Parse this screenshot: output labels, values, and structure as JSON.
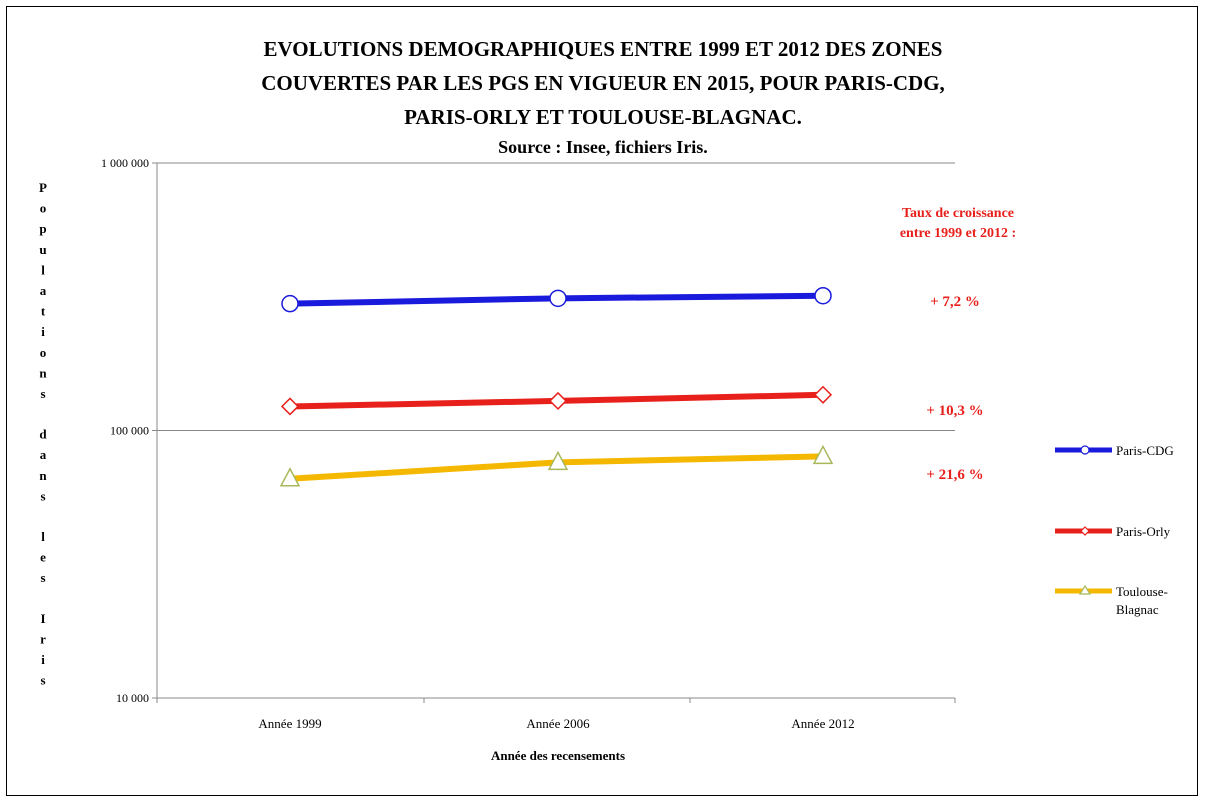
{
  "chart_data": {
    "type": "line",
    "title": "EVOLUTIONS DEMOGRAPHIQUES ENTRE 1999 ET 2012 DES ZONES COUVERTES PAR LES PGS EN VIGUEUR EN 2015, POUR PARIS-CDG, PARIS-ORLY ET TOULOUSE-BLAGNAC.",
    "title_lines": [
      "EVOLUTIONS DEMOGRAPHIQUES ENTRE 1999 ET 2012 DES ZONES",
      "COUVERTES PAR LES PGS EN VIGUEUR EN 2015, POUR PARIS-CDG,",
      "PARIS-ORLY ET TOULOUSE-BLAGNAC."
    ],
    "subtitle": "Source : Insee, fichiers Iris.",
    "xlabel": "Année des recensements",
    "ylabel": "Populations dans les Iris",
    "yscale": "log",
    "ylim": [
      10000,
      1000000
    ],
    "yticks": [
      1000000,
      100000,
      10000
    ],
    "ytick_labels": [
      "1 000 000",
      "100 000",
      "10 000"
    ],
    "grid": "horizontal",
    "legend_position": "right",
    "categories": [
      "Année 1999",
      "Année 2006",
      "Année 2012"
    ],
    "series": [
      {
        "name": "Paris-CDG",
        "values": [
          298000,
          312000,
          319000
        ],
        "color": "#1a1adc",
        "marker": "circle",
        "growth": "+ 7,2 %"
      },
      {
        "name": "Paris-Orly",
        "values": [
          123000,
          129000,
          136000
        ],
        "color": "#e8201c",
        "marker": "diamond",
        "growth": "+ 10,3 %"
      },
      {
        "name": "Toulouse-Blagnac",
        "values": [
          66000,
          76000,
          80000
        ],
        "color": "#f5b800",
        "marker": "triangle",
        "growth": "+ 21,6 %"
      }
    ],
    "annotation_title_lines": [
      "Taux de croissance",
      "entre 1999 et 2012 :"
    ]
  }
}
